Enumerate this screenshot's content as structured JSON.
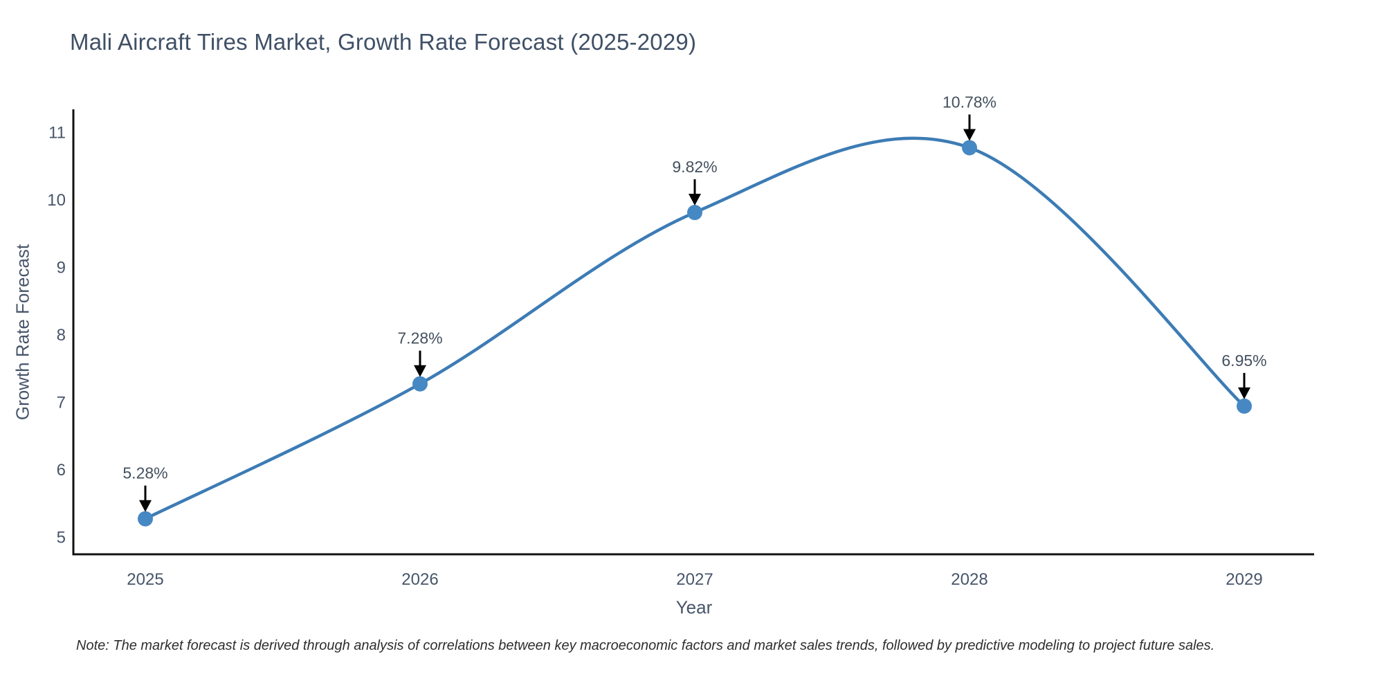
{
  "title": "Mali Aircraft Tires Market, Growth Rate Forecast (2025-2029)",
  "note": "Note: The market forecast is derived through analysis of correlations between key macroeconomic factors and market sales trends, followed by predictive modeling to project future sales.",
  "chart_data": {
    "type": "line",
    "line_shape": "spline",
    "title": "Mali Aircraft Tires Market, Growth Rate Forecast (2025-2029)",
    "xlabel": "Year",
    "ylabel": "Growth Rate Forecast",
    "x": [
      2025,
      2026,
      2027,
      2028,
      2029
    ],
    "series": [
      {
        "name": "Growth Rate Forecast",
        "values": [
          5.28,
          7.28,
          9.82,
          10.78,
          6.95
        ],
        "point_labels": [
          "5.28%",
          "7.28%",
          "9.82%",
          "10.78%",
          "6.95%"
        ]
      }
    ],
    "y_ticks": [
      5,
      6,
      7,
      8,
      9,
      10,
      11
    ],
    "ylim": [
      4.75,
      11.35
    ],
    "grid": false,
    "legend_position": "none",
    "markers": "circle",
    "annotations_arrows": true
  },
  "colors": {
    "background": "#ffffff",
    "line": "#3d7cb5",
    "marker": "#4688c3",
    "axis_line": "#111111",
    "tick_text": "#47556a",
    "title_text": "#3f5066",
    "annotation_text": "#43505e",
    "arrow": "#000000",
    "note_text": "#2e2e2e"
  }
}
